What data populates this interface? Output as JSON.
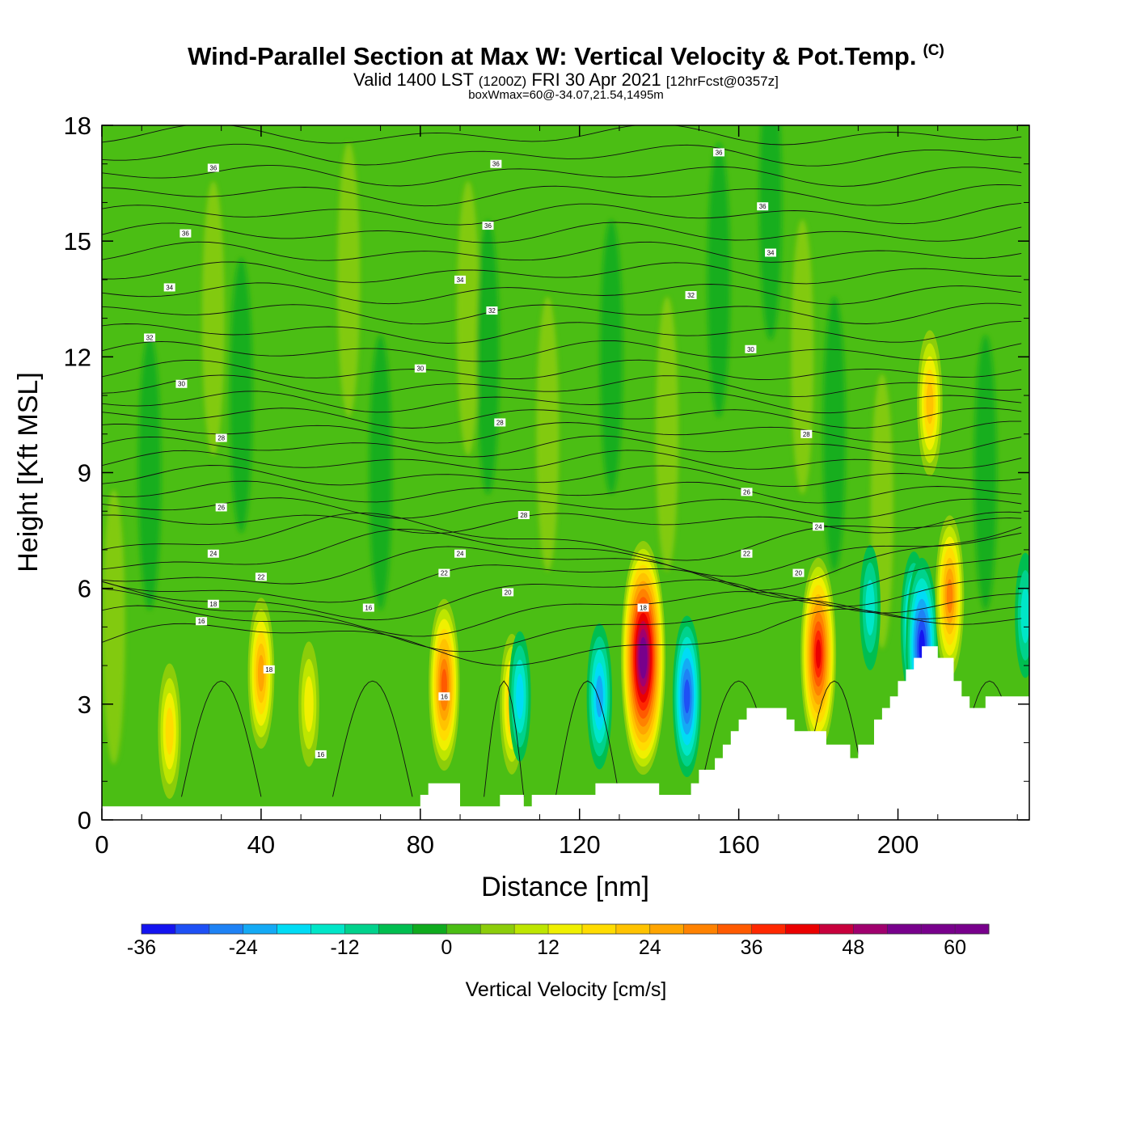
{
  "header": {
    "title": "Wind-Parallel Section at Max W: Vertical Velocity & Pot.Temp.",
    "copyright": "(C)",
    "valid_prefix": "Valid 1400 LST",
    "zulu": "(1200Z)",
    "date": "FRI 30 Apr 2021",
    "forecast": "[12hrFcst@0357z]",
    "box_info": "boxWmax=60@-34.07,21.54,1495m"
  },
  "chart_data": {
    "type": "heatmap",
    "xlabel": "Distance [nm]",
    "ylabel": "Height [Kft MSL]",
    "xlim": [
      0,
      233
    ],
    "ylim": [
      0,
      18
    ],
    "x_ticks": [
      "0",
      "40",
      "80",
      "120",
      "160",
      "200"
    ],
    "y_ticks": [
      "0",
      "3",
      "6",
      "9",
      "12",
      "15",
      "18"
    ],
    "colorbar": {
      "label": "Vertical Velocity [cm/s]",
      "ticks": [
        "-36",
        "-24",
        "-12",
        "0",
        "12",
        "24",
        "36",
        "48",
        "60"
      ],
      "levels_start": -36,
      "levels_step": 4,
      "colors": [
        "#1414f0",
        "#1e50f5",
        "#1e82f5",
        "#14aaf5",
        "#00dcf5",
        "#00e6c8",
        "#00d28c",
        "#00be50",
        "#0fab1e",
        "#4bbe14",
        "#8ccd0a",
        "#bee600",
        "#f0f000",
        "#ffdc00",
        "#ffc300",
        "#ffa500",
        "#ff8200",
        "#ff5a00",
        "#ff2800",
        "#eb0000",
        "#c8003c",
        "#a0006e",
        "#78008c"
      ]
    },
    "terrain": [
      [
        0,
        0.35
      ],
      [
        78,
        0.35
      ],
      [
        80,
        0.65
      ],
      [
        82,
        0.95
      ],
      [
        88,
        0.95
      ],
      [
        90,
        0.35
      ],
      [
        100,
        0.35
      ],
      [
        100,
        0.65
      ],
      [
        106,
        0.65
      ],
      [
        106,
        0.35
      ],
      [
        108,
        0.65
      ],
      [
        120,
        0.65
      ],
      [
        124,
        0.95
      ],
      [
        138,
        0.95
      ],
      [
        140,
        0.65
      ],
      [
        146,
        0.65
      ],
      [
        148,
        0.95
      ],
      [
        150,
        1.3
      ],
      [
        154,
        1.6
      ],
      [
        156,
        1.95
      ],
      [
        158,
        2.3
      ],
      [
        160,
        2.6
      ],
      [
        162,
        2.9
      ],
      [
        168,
        2.9
      ],
      [
        172,
        2.6
      ],
      [
        174,
        2.3
      ],
      [
        180,
        2.3
      ],
      [
        182,
        1.95
      ],
      [
        186,
        1.95
      ],
      [
        188,
        1.6
      ],
      [
        190,
        1.95
      ],
      [
        194,
        2.6
      ],
      [
        196,
        2.9
      ],
      [
        198,
        3.2
      ],
      [
        200,
        3.6
      ],
      [
        202,
        3.9
      ],
      [
        204,
        4.2
      ],
      [
        206,
        4.5
      ],
      [
        210,
        4.5
      ],
      [
        210,
        4.2
      ],
      [
        212,
        4.2
      ],
      [
        214,
        3.6
      ],
      [
        216,
        3.2
      ],
      [
        218,
        2.9
      ],
      [
        222,
        2.9
      ],
      [
        222,
        3.2
      ],
      [
        233,
        3.2
      ]
    ],
    "vertical_velocity_cells": [
      {
        "x": 17,
        "z": 2.3,
        "w": 18
      },
      {
        "x": 40,
        "z": 3.8,
        "w": 24
      },
      {
        "x": 52,
        "z": 3.0,
        "w": 14
      },
      {
        "x": 86,
        "z": 3.5,
        "w": 32
      },
      {
        "x": 103,
        "z": 3.0,
        "w": 20
      },
      {
        "x": 105,
        "z": 3.2,
        "w": -16
      },
      {
        "x": 125,
        "z": 3.2,
        "w": -22
      },
      {
        "x": 136,
        "z": 4.2,
        "w": 56
      },
      {
        "x": 147,
        "z": 3.2,
        "w": -28
      },
      {
        "x": 180,
        "z": 4.3,
        "w": 40
      },
      {
        "x": 193,
        "z": 5.5,
        "w": -14
      },
      {
        "x": 204,
        "z": 5.0,
        "w": -24
      },
      {
        "x": 206,
        "z": 4.5,
        "w": -34
      },
      {
        "x": 208,
        "z": 10.8,
        "w": 22
      },
      {
        "x": 213,
        "z": 5.8,
        "w": 28
      },
      {
        "x": 232,
        "z": 5.3,
        "w": -14
      }
    ],
    "theta_contour_labels": [
      "16",
      "18",
      "20",
      "22",
      "24",
      "26",
      "28",
      "30",
      "32",
      "34",
      "36"
    ]
  }
}
